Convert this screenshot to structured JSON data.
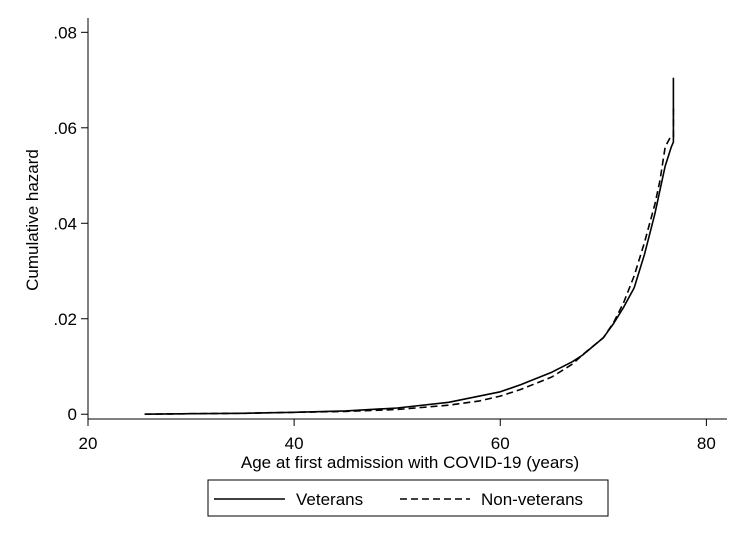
{
  "chart_data": {
    "type": "line",
    "xlabel": "Age at first admission with COVID-19 (years)",
    "ylabel": "Cumulative hazard",
    "xlim": [
      20,
      82
    ],
    "ylim": [
      -0.001,
      0.083
    ],
    "x_ticks": [
      20,
      40,
      60,
      80
    ],
    "x_tick_labels": [
      "20",
      "40",
      "60",
      "80"
    ],
    "y_ticks": [
      0,
      0.02,
      0.04,
      0.06,
      0.08
    ],
    "y_tick_labels": [
      "0",
      ".02",
      ".04",
      ".06",
      ".08"
    ],
    "grid": false,
    "legend_position": "bottom",
    "series": [
      {
        "name": "Veterans",
        "style": "solid",
        "color": "#000000",
        "points": [
          [
            25.5,
            0
          ],
          [
            30,
            0.0001
          ],
          [
            35,
            0.0002
          ],
          [
            40,
            0.0004
          ],
          [
            45,
            0.0007
          ],
          [
            50,
            0.0013
          ],
          [
            55,
            0.0025
          ],
          [
            60,
            0.0047
          ],
          [
            62,
            0.0062
          ],
          [
            65,
            0.0088
          ],
          [
            67,
            0.011
          ],
          [
            68,
            0.0124
          ],
          [
            70,
            0.016
          ],
          [
            71,
            0.019
          ],
          [
            72,
            0.0225
          ],
          [
            73,
            0.0265
          ],
          [
            74,
            0.0335
          ],
          [
            75,
            0.042
          ],
          [
            75.5,
            0.047
          ],
          [
            76,
            0.052
          ],
          [
            76.3,
            0.054
          ],
          [
            76.6,
            0.056
          ],
          [
            76.8,
            0.057
          ],
          [
            76.8,
            0.0705
          ]
        ]
      },
      {
        "name": "Non-veterans",
        "style": "dashed",
        "color": "#000000",
        "points": [
          [
            25.5,
            0
          ],
          [
            30,
            0.0001
          ],
          [
            35,
            0.0002
          ],
          [
            40,
            0.0004
          ],
          [
            45,
            0.0006
          ],
          [
            50,
            0.001
          ],
          [
            55,
            0.0019
          ],
          [
            58,
            0.0028
          ],
          [
            60,
            0.0038
          ],
          [
            62,
            0.0052
          ],
          [
            65,
            0.0078
          ],
          [
            67,
            0.0105
          ],
          [
            68,
            0.0125
          ],
          [
            70,
            0.016
          ],
          [
            71,
            0.0192
          ],
          [
            72,
            0.0235
          ],
          [
            73,
            0.029
          ],
          [
            74,
            0.036
          ],
          [
            75,
            0.044
          ],
          [
            75.5,
            0.049
          ],
          [
            76,
            0.056
          ],
          [
            76.5,
            0.058
          ],
          [
            76.8,
            0.058
          ],
          [
            76.8,
            0.064
          ]
        ]
      }
    ]
  }
}
